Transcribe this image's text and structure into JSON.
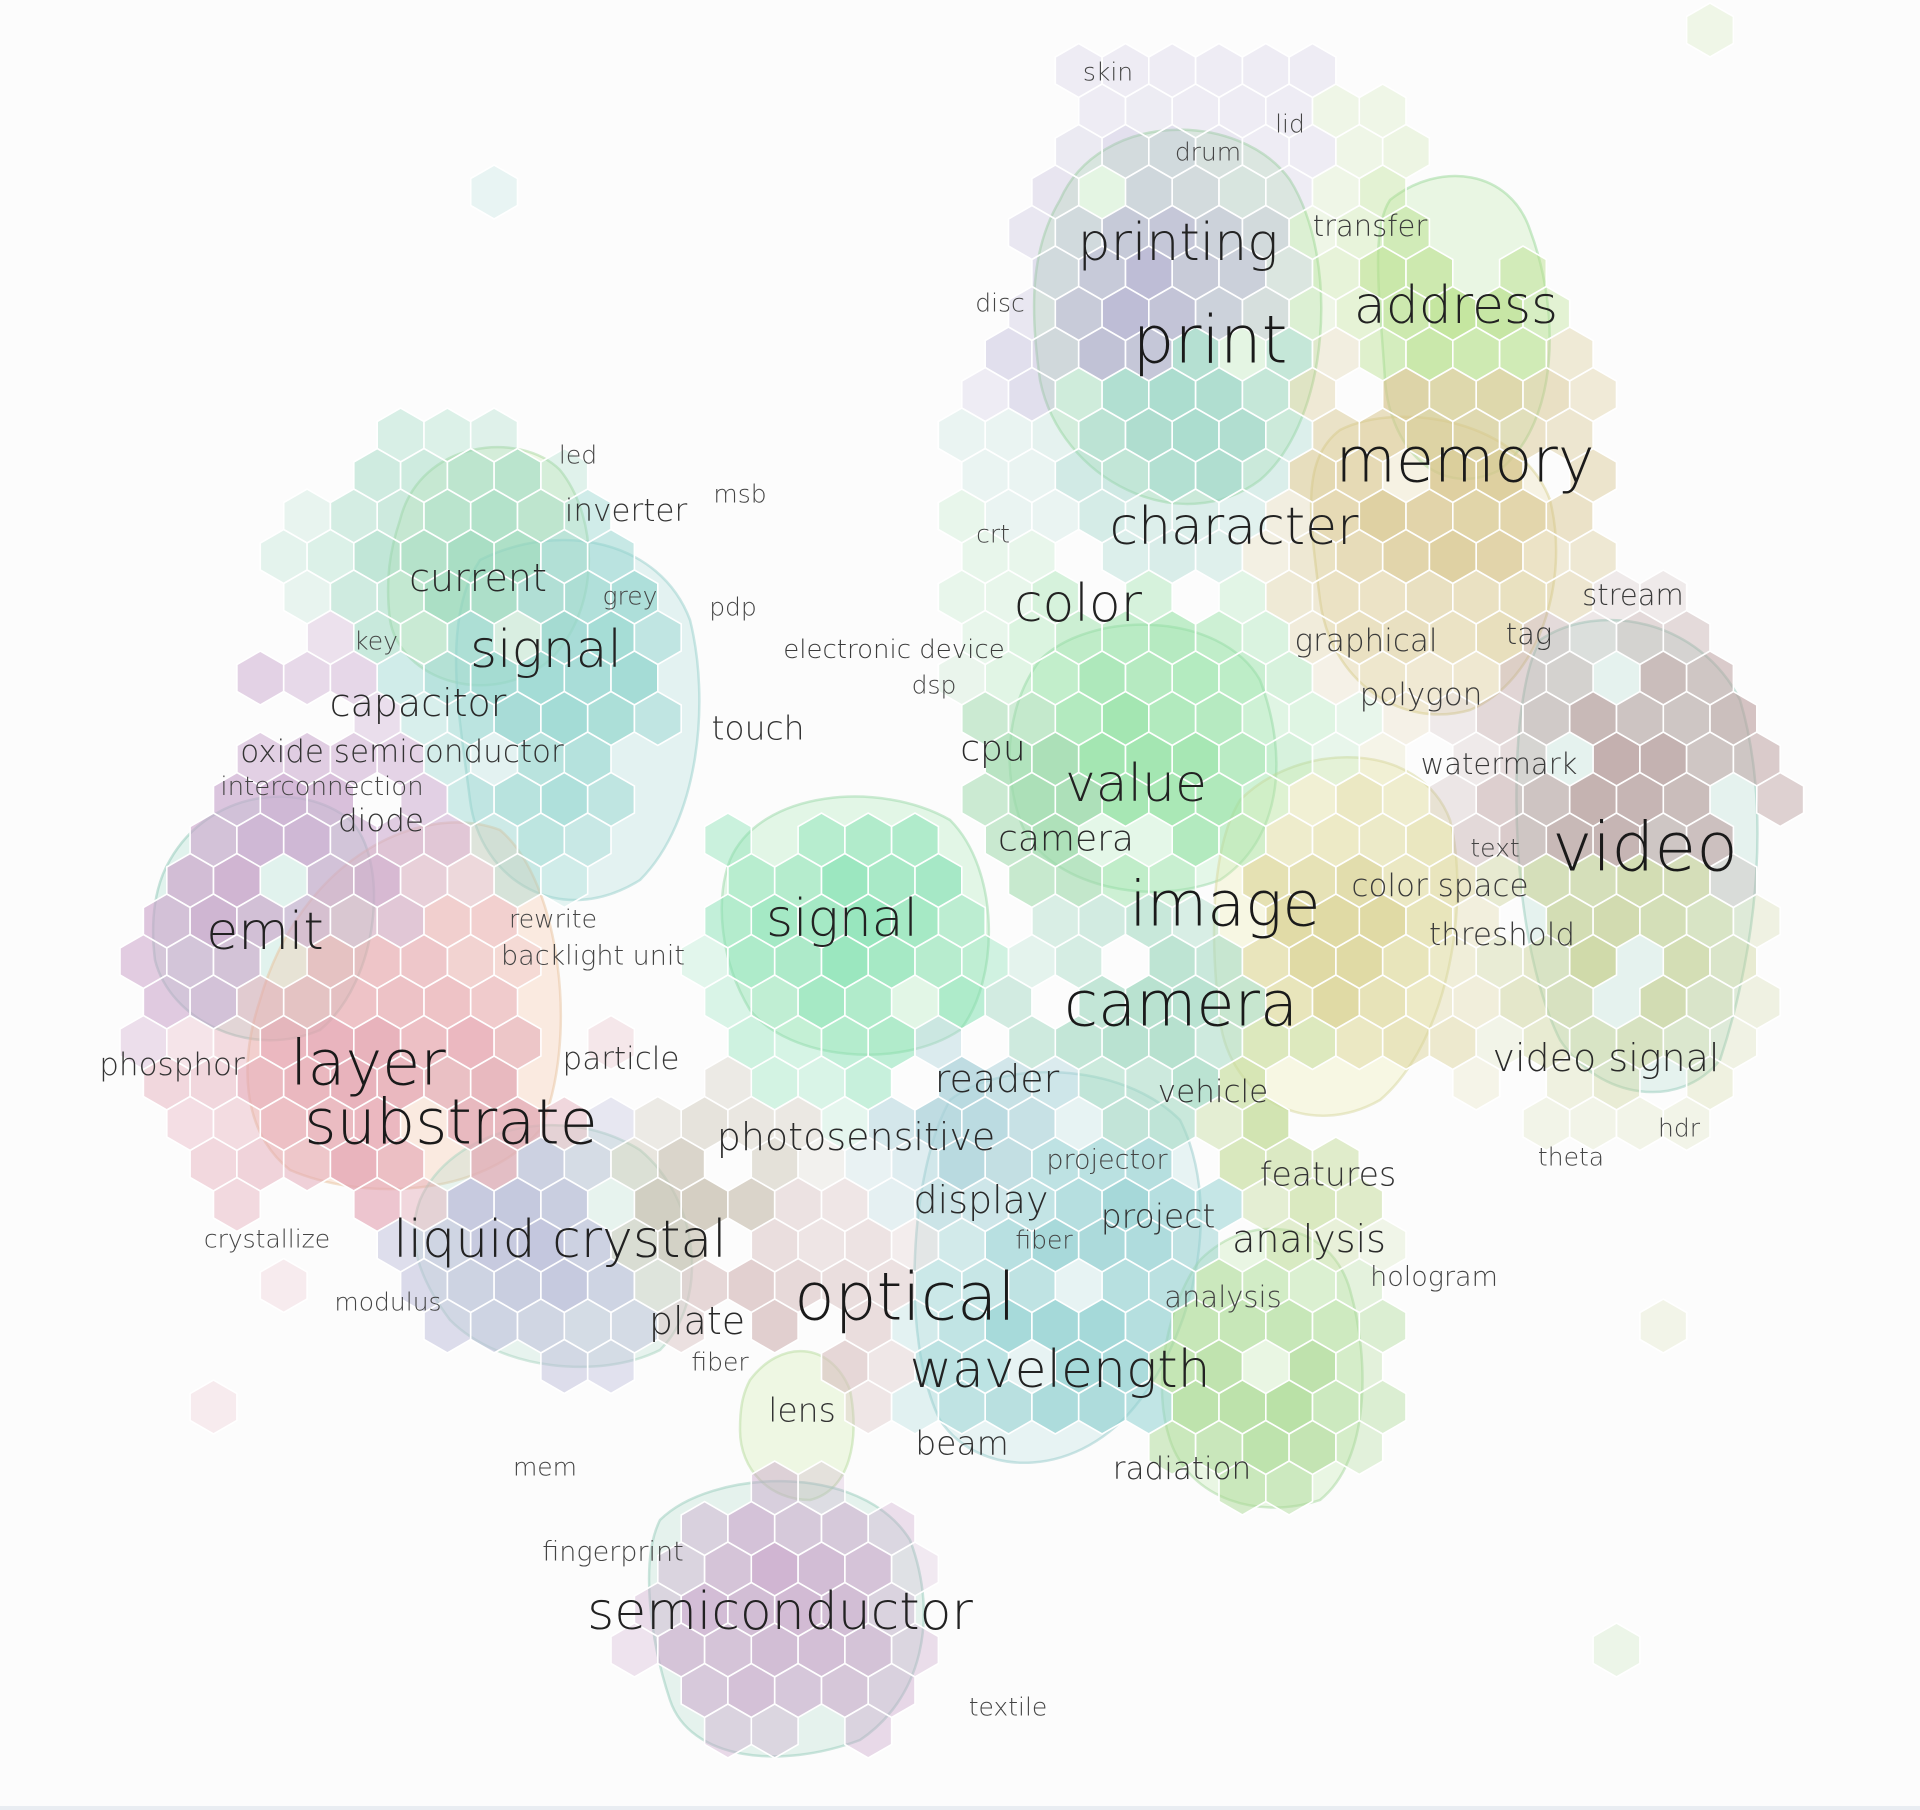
{
  "labels": [
    {
      "text": "skin",
      "size": "s"
    },
    {
      "text": "lid",
      "size": "s"
    },
    {
      "text": "drum",
      "size": "s"
    },
    {
      "text": "transfer",
      "size": "s"
    },
    {
      "text": "printing",
      "size": "l"
    },
    {
      "text": "disc",
      "size": "s"
    },
    {
      "text": "address",
      "size": "l"
    },
    {
      "text": "print",
      "size": "xl"
    },
    {
      "text": "memory",
      "size": "xl"
    },
    {
      "text": "led",
      "size": "s"
    },
    {
      "text": "msb",
      "size": "s"
    },
    {
      "text": "inverter",
      "size": "m"
    },
    {
      "text": "crt",
      "size": "s"
    },
    {
      "text": "character",
      "size": "l"
    },
    {
      "text": "current",
      "size": "m"
    },
    {
      "text": "grey",
      "size": "s"
    },
    {
      "text": "pdp",
      "size": "s"
    },
    {
      "text": "color",
      "size": "l"
    },
    {
      "text": "stream",
      "size": "s"
    },
    {
      "text": "key",
      "size": "s"
    },
    {
      "text": "signal",
      "size": "l"
    },
    {
      "text": "electronic device",
      "size": "s"
    },
    {
      "text": "graphical",
      "size": "s"
    },
    {
      "text": "tag",
      "size": "s"
    },
    {
      "text": "dsp",
      "size": "s"
    },
    {
      "text": "capacitor",
      "size": "m"
    },
    {
      "text": "polygon",
      "size": "s"
    },
    {
      "text": "touch",
      "size": "m"
    },
    {
      "text": "cpu",
      "size": "m"
    },
    {
      "text": "oxide semiconductor",
      "size": "m"
    },
    {
      "text": "watermark",
      "size": "s"
    },
    {
      "text": "value",
      "size": "l"
    },
    {
      "text": "interconnection",
      "size": "s"
    },
    {
      "text": "diode",
      "size": "m"
    },
    {
      "text": "camera",
      "size": "m"
    },
    {
      "text": "text",
      "size": "s"
    },
    {
      "text": "video",
      "size": "xl"
    },
    {
      "text": "color space",
      "size": "s"
    },
    {
      "text": "image",
      "size": "xl"
    },
    {
      "text": "rewrite",
      "size": "s"
    },
    {
      "text": "emit",
      "size": "l"
    },
    {
      "text": "signal",
      "size": "l"
    },
    {
      "text": "threshold",
      "size": "s"
    },
    {
      "text": "backlight unit",
      "size": "s"
    },
    {
      "text": "camera",
      "size": "xl"
    },
    {
      "text": "video signal",
      "size": "m"
    },
    {
      "text": "phosphor",
      "size": "m"
    },
    {
      "text": "layer",
      "size": "xl"
    },
    {
      "text": "particle",
      "size": "m"
    },
    {
      "text": "reader",
      "size": "m"
    },
    {
      "text": "vehicle",
      "size": "s"
    },
    {
      "text": "substrate",
      "size": "xl"
    },
    {
      "text": "hdr",
      "size": "s"
    },
    {
      "text": "photosensitive",
      "size": "m"
    },
    {
      "text": "theta",
      "size": "s"
    },
    {
      "text": "projector",
      "size": "s"
    },
    {
      "text": "features",
      "size": "m"
    },
    {
      "text": "display",
      "size": "m"
    },
    {
      "text": "project",
      "size": "m"
    },
    {
      "text": "crystallize",
      "size": "s"
    },
    {
      "text": "liquid crystal",
      "size": "l"
    },
    {
      "text": "fiber",
      "size": "s"
    },
    {
      "text": "analysis",
      "size": "m"
    },
    {
      "text": "hologram",
      "size": "s"
    },
    {
      "text": "modulus",
      "size": "s"
    },
    {
      "text": "analysis",
      "size": "s"
    },
    {
      "text": "optical",
      "size": "xl"
    },
    {
      "text": "plate",
      "size": "m"
    },
    {
      "text": "fiber",
      "size": "s"
    },
    {
      "text": "wavelength",
      "size": "l"
    },
    {
      "text": "lens",
      "size": "m"
    },
    {
      "text": "beam",
      "size": "m"
    },
    {
      "text": "radiation",
      "size": "m"
    },
    {
      "text": "mem",
      "size": "s"
    },
    {
      "text": "fingerprint",
      "size": "s"
    },
    {
      "text": "semiconductor",
      "size": "l"
    },
    {
      "text": "textile",
      "size": "s"
    }
  ]
}
